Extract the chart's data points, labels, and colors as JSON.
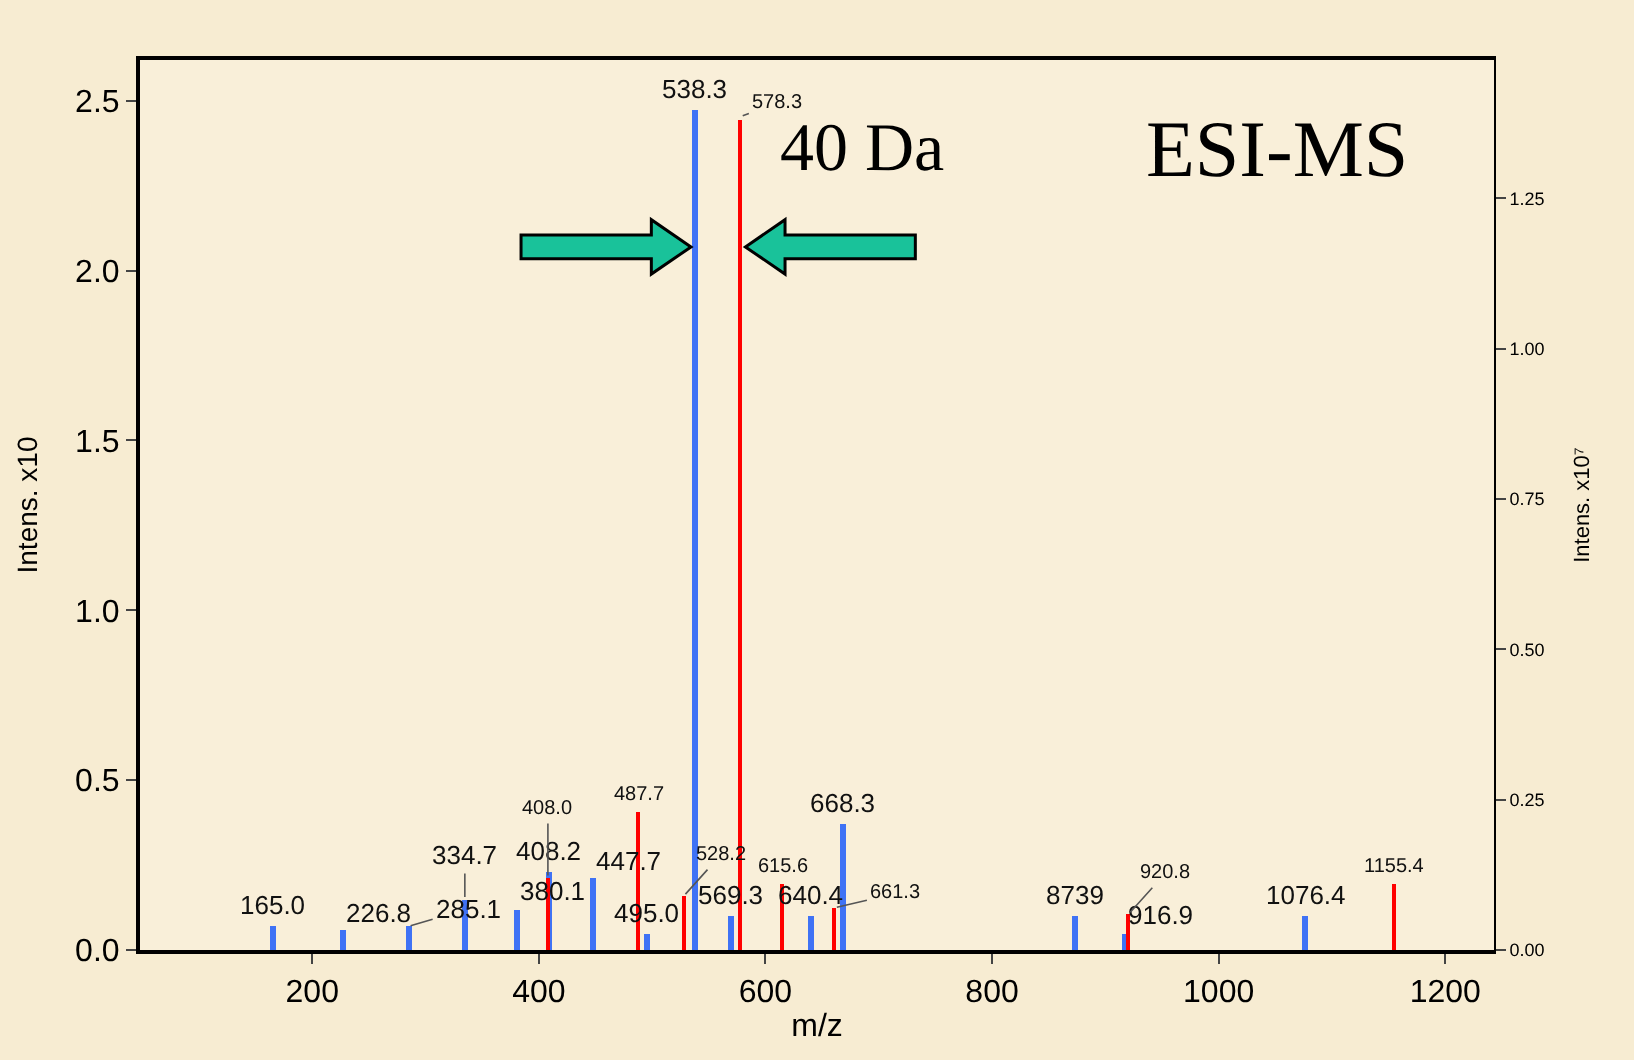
{
  "chart_data": {
    "type": "bar",
    "xlabel": "m/z",
    "ylabel": "Intens. x10",
    "y2label": "Intens. x10⁷",
    "annotations": [
      "40 Da",
      "ESI-MS",
      {
        "text": "165.0",
        "x": 165.0,
        "y": 0.07
      },
      {
        "text": "226.8",
        "x": 226.8,
        "y": 0.06
      },
      {
        "text": "285.1",
        "x": 285.1,
        "y": 0.07
      },
      {
        "text": "334.7",
        "x": 334.7,
        "y": 0.15
      },
      {
        "text": "380.1",
        "x": 380.1,
        "y": 0.12
      },
      {
        "text": "408.2",
        "x": 408.2,
        "y": 0.23
      },
      {
        "text": "447.7",
        "x": 447.7,
        "y": 0.21
      },
      {
        "text": "495.0",
        "x": 495.0,
        "y": 0.05
      },
      {
        "text": "538.3",
        "x": 538.3,
        "y": 2.47
      },
      {
        "text": "569.3",
        "x": 569.3,
        "y": 0.1
      },
      {
        "text": "640.4",
        "x": 640.4,
        "y": 0.1
      },
      {
        "text": "668.3",
        "x": 668.3,
        "y": 0.37
      },
      {
        "text": "8739",
        "x": 873.9,
        "y": 0.1
      },
      {
        "text": "916.9",
        "x": 916.9,
        "y": 0.05
      },
      {
        "text": "1076.4",
        "x": 1076.4,
        "y": 0.1
      },
      {
        "text": "408.0",
        "x": 408.0,
        "y": 0.2133
      },
      {
        "text": "487.7",
        "x": 487.7,
        "y": 0.4089
      },
      {
        "text": "528.2",
        "x": 528.2,
        "y": 0.16
      },
      {
        "text": "578.3",
        "x": 578.3,
        "y": 2.4535
      },
      {
        "text": "615.6",
        "x": 615.6,
        "y": 0.1956
      },
      {
        "text": "661.3",
        "x": 661.3,
        "y": 0.1244
      },
      {
        "text": "920.8",
        "x": 920.8,
        "y": 0.1067
      },
      {
        "text": "1155.4",
        "x": 1155.4,
        "y": 0.1956
      }
    ],
    "xlim": [
      48,
      1243
    ],
    "xticks": [
      200,
      400,
      600,
      800,
      1000,
      1200
    ],
    "ylim": [
      0,
      2.62
    ],
    "yticks": [
      {
        "value": 0,
        "label": "0.0"
      },
      {
        "value": 0.5,
        "label": "0.5"
      },
      {
        "value": 1.0,
        "label": "1.0"
      },
      {
        "value": 1.5,
        "label": "1.5"
      },
      {
        "value": 2.0,
        "label": "2.0"
      },
      {
        "value": 2.5,
        "label": "2.5"
      }
    ],
    "y2lim": [
      0,
      1.48
    ],
    "y2ticks": [
      {
        "value": 0,
        "label": "0.00"
      },
      {
        "value": 0.25,
        "label": "0.25"
      },
      {
        "value": 0.5,
        "label": "0.50"
      },
      {
        "value": 0.75,
        "label": "0.75"
      },
      {
        "value": 1.0,
        "label": "1.00"
      },
      {
        "value": 1.25,
        "label": "1.25"
      }
    ],
    "grid": false,
    "series": [
      {
        "color": "#3f72f5",
        "x": [
          165.0,
          226.8,
          285.1,
          334.7,
          380.1,
          408.2,
          447.7,
          495.0,
          538.3,
          569.3,
          640.4,
          668.3,
          873.9,
          916.9,
          1076.4
        ],
        "values": [
          0.07,
          0.06,
          0.07,
          0.15,
          0.12,
          0.23,
          0.21,
          0.05,
          2.47,
          0.1,
          0.1,
          0.37,
          0.1,
          0.05,
          0.1
        ]
      },
      {
        "color": "#ff0000",
        "axis": "y2",
        "x": [
          408.0,
          487.7,
          528.2,
          578.3,
          615.6,
          661.3,
          920.8,
          1155.4
        ],
        "values": [
          0.12,
          0.23,
          0.09,
          1.38,
          0.11,
          0.07,
          0.06,
          0.11
        ]
      }
    ]
  }
}
